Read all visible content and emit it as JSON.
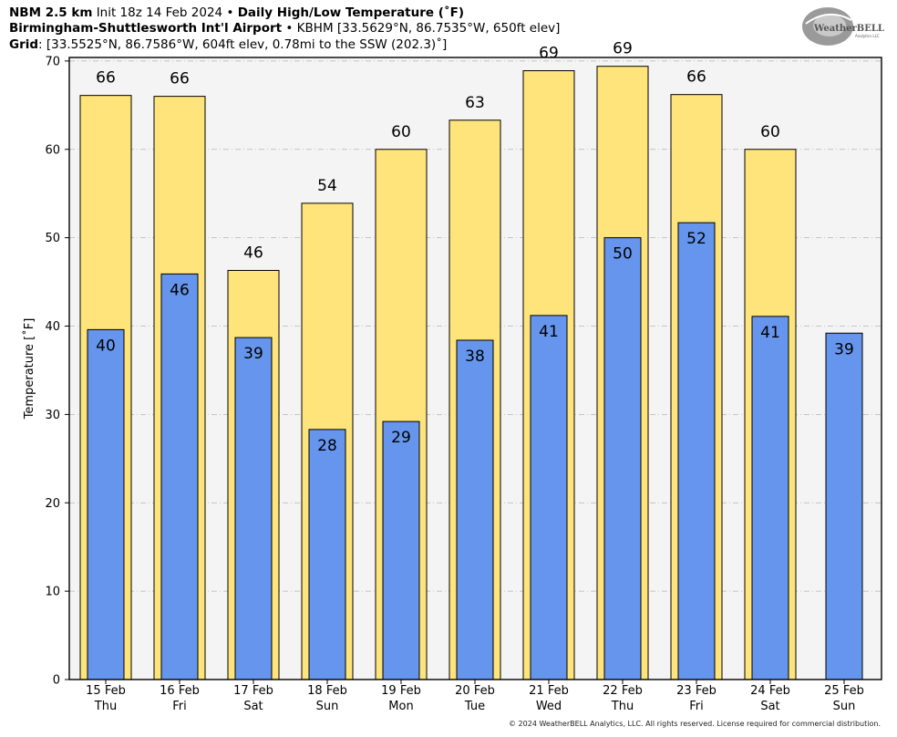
{
  "header": {
    "line1_bold": "NBM 2.5 km",
    "line1_init": "Init 18z 14 Feb 2024",
    "bullet": "•",
    "line1_product": "Daily High/Low Temperature (˚F)",
    "line2_bold": "Birmingham-Shuttlesworth Int'l Airport",
    "line2_rest": "KBHM [33.5629°N, 86.7535°W, 650ft elev]",
    "line3_bold": "Grid",
    "line3_rest": ": [33.5525°N, 86.7586°W, 604ft elev, 0.78mi to the SSW (202.3)˚]"
  },
  "logo": {
    "text": "WeatherBELL",
    "sub": "Analytics LLC"
  },
  "footer": {
    "copyright": "© 2024 WeatherBELL Analytics, LLC. All rights reserved. License required for commercial distribution."
  },
  "chart_data": {
    "type": "bar",
    "ylabel": "Temperature [˚F]",
    "ylim": [
      0,
      70.4
    ],
    "yticks": [
      0,
      10,
      20,
      30,
      40,
      50,
      60,
      70
    ],
    "grid": true,
    "categories": [
      {
        "date": "15 Feb",
        "day": "Thu"
      },
      {
        "date": "16 Feb",
        "day": "Fri"
      },
      {
        "date": "17 Feb",
        "day": "Sat"
      },
      {
        "date": "18 Feb",
        "day": "Sun"
      },
      {
        "date": "19 Feb",
        "day": "Mon"
      },
      {
        "date": "20 Feb",
        "day": "Tue"
      },
      {
        "date": "21 Feb",
        "day": "Wed"
      },
      {
        "date": "22 Feb",
        "day": "Thu"
      },
      {
        "date": "23 Feb",
        "day": "Fri"
      },
      {
        "date": "24 Feb",
        "day": "Sat"
      },
      {
        "date": "25 Feb",
        "day": "Sun"
      }
    ],
    "series": [
      {
        "color": "#fee47a",
        "values": [
          66.1,
          66.0,
          46.3,
          53.9,
          60.0,
          63.3,
          68.9,
          69.4,
          66.2,
          60.0,
          null
        ],
        "labels": [
          "66",
          "66",
          "46",
          "54",
          "60",
          "63",
          "69",
          "69",
          "66",
          "60",
          ""
        ]
      },
      {
        "color": "#6595ec",
        "values": [
          39.6,
          45.9,
          38.7,
          28.3,
          29.2,
          38.4,
          41.2,
          50.0,
          51.7,
          41.1,
          39.2
        ],
        "labels": [
          "40",
          "46",
          "39",
          "28",
          "29",
          "38",
          "41",
          "50",
          "52",
          "41",
          "39"
        ]
      }
    ]
  }
}
